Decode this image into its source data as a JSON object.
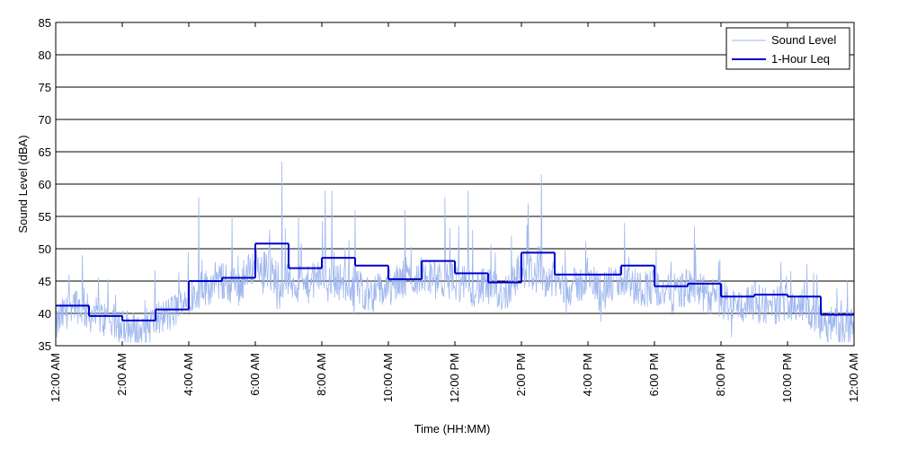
{
  "chart_data": {
    "type": "line",
    "xlabel": "Time (HH:MM)",
    "ylabel": "Sound Level (dBA)",
    "ylim": [
      35,
      85
    ],
    "xlim_hours": [
      0,
      24
    ],
    "yticks": [
      35,
      40,
      45,
      50,
      55,
      60,
      65,
      70,
      75,
      80,
      85
    ],
    "xticks": [
      {
        "hour": 0,
        "label": "12:00 AM"
      },
      {
        "hour": 2,
        "label": "2:00 AM"
      },
      {
        "hour": 4,
        "label": "4:00 AM"
      },
      {
        "hour": 6,
        "label": "6:00 AM"
      },
      {
        "hour": 8,
        "label": "8:00 AM"
      },
      {
        "hour": 10,
        "label": "10:00 AM"
      },
      {
        "hour": 12,
        "label": "12:00 PM"
      },
      {
        "hour": 14,
        "label": "2:00 PM"
      },
      {
        "hour": 16,
        "label": "4:00 PM"
      },
      {
        "hour": 18,
        "label": "6:00 PM"
      },
      {
        "hour": 20,
        "label": "8:00 PM"
      },
      {
        "hour": 22,
        "label": "10:00 PM"
      },
      {
        "hour": 24,
        "label": "12:00 AM"
      }
    ],
    "grid": "horizontal",
    "legend_position": "top-right",
    "series": [
      {
        "name": "Sound Level",
        "color": "#9fb7ee",
        "style": "thin-line",
        "x": [
          0.0,
          0.5,
          1.0,
          1.5,
          2.0,
          2.5,
          3.0,
          3.5,
          4.0,
          4.5,
          5.0,
          5.5,
          6.0,
          6.5,
          7.0,
          7.5,
          8.0,
          8.5,
          9.0,
          9.5,
          10.0,
          10.5,
          11.0,
          11.5,
          12.0,
          12.5,
          13.0,
          13.5,
          14.0,
          14.5,
          15.0,
          15.5,
          16.0,
          16.5,
          17.0,
          17.5,
          18.0,
          18.5,
          19.0,
          19.5,
          20.0,
          20.5,
          21.0,
          21.5,
          22.0,
          22.5,
          23.0,
          23.5,
          24.0
        ],
        "y": [
          38,
          42,
          40,
          39,
          38,
          37,
          39,
          40,
          43,
          44,
          45,
          44,
          48,
          46,
          45,
          44,
          46,
          45,
          44,
          43,
          44,
          45,
          46,
          45,
          45,
          44,
          44,
          43,
          47,
          46,
          45,
          44,
          45,
          44,
          45,
          44,
          44,
          43,
          44,
          43,
          42,
          41,
          42,
          41,
          42,
          41,
          39,
          38,
          38
        ],
        "peaks": [
          [
            0.4,
            46
          ],
          [
            0.8,
            49
          ],
          [
            4.3,
            58
          ],
          [
            5.3,
            55
          ],
          [
            6.8,
            63.5
          ],
          [
            7.3,
            55
          ],
          [
            8.1,
            59
          ],
          [
            8.3,
            59
          ],
          [
            9.0,
            56
          ],
          [
            10.5,
            56
          ],
          [
            11.7,
            58
          ],
          [
            12.4,
            59
          ],
          [
            13.7,
            52
          ],
          [
            14.2,
            57
          ],
          [
            14.6,
            61.5
          ],
          [
            17.1,
            54
          ],
          [
            18.5,
            48
          ],
          [
            19.2,
            53.5
          ],
          [
            21.8,
            48
          ],
          [
            22.5,
            45
          ]
        ]
      },
      {
        "name": "1-Hour Leq",
        "color": "#0000cc",
        "style": "step",
        "x": [
          0,
          1,
          2,
          3,
          4,
          5,
          6,
          7,
          8,
          9,
          10,
          11,
          12,
          13,
          14,
          15,
          16,
          17,
          18,
          19,
          20,
          21,
          22,
          23
        ],
        "y": [
          41.2,
          39.6,
          38.9,
          40.6,
          45.0,
          45.5,
          50.8,
          47.0,
          48.6,
          47.4,
          45.3,
          48.1,
          46.2,
          44.8,
          49.4,
          46.0,
          46.0,
          47.4,
          44.2,
          44.6,
          42.6,
          42.9,
          42.6,
          39.8
        ]
      }
    ]
  }
}
